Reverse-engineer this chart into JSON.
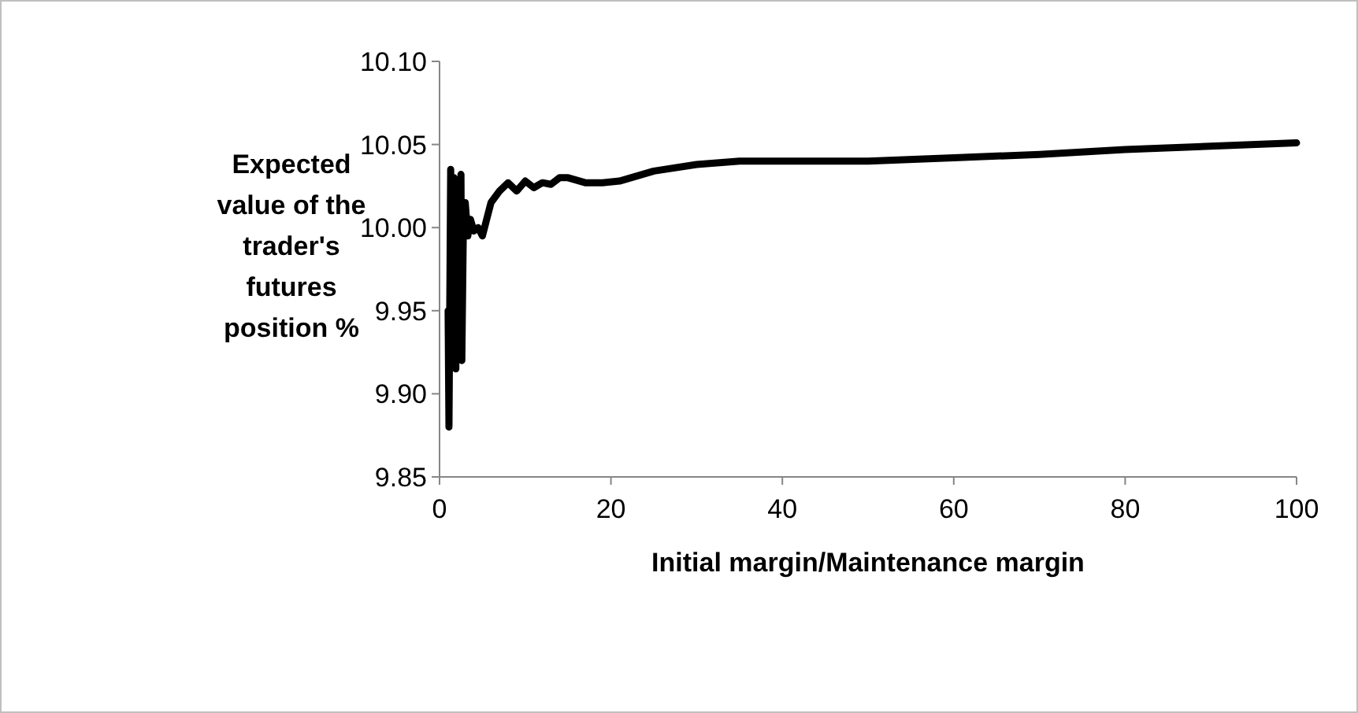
{
  "chart_data": {
    "type": "line",
    "xlabel": "Initial margin/Maintenance margin",
    "ylabel": "Expected value of the trader's futures position %",
    "x": [
      1,
      1.1,
      1.3,
      1.5,
      1.7,
      1.9,
      2.1,
      2.3,
      2.5,
      2.6,
      2.8,
      3,
      3.3,
      3.6,
      4,
      4.5,
      5,
      5.5,
      6,
      7,
      8,
      9,
      10,
      11,
      12,
      13,
      14,
      15,
      17,
      19,
      21,
      25,
      30,
      35,
      40,
      50,
      60,
      70,
      80,
      90,
      100
    ],
    "series": [
      {
        "color": "#000000",
        "values": [
          9.95,
          9.88,
          10.035,
          9.92,
          10.03,
          9.915,
          10.02,
          9.93,
          10.032,
          9.92,
          10.01,
          10.015,
          9.995,
          10.005,
          9.998,
          10.0,
          9.995,
          10.005,
          10.015,
          10.022,
          10.027,
          10.022,
          10.028,
          10.024,
          10.027,
          10.026,
          10.03,
          10.03,
          10.027,
          10.027,
          10.028,
          10.034,
          10.038,
          10.04,
          10.04,
          10.04,
          10.042,
          10.044,
          10.047,
          10.049,
          10.051
        ]
      }
    ],
    "xlim": [
      0,
      100
    ],
    "xticks": [
      0,
      20,
      40,
      60,
      80,
      100
    ],
    "ylim": [
      9.85,
      10.1
    ],
    "yticks": [
      {
        "value": 9.85,
        "label": "9.85"
      },
      {
        "value": 9.9,
        "label": "9.90"
      },
      {
        "value": 9.95,
        "label": "9.95"
      },
      {
        "value": 10,
        "label": "10.00"
      },
      {
        "value": 10.05,
        "label": "10.05"
      },
      {
        "value": 10.1,
        "label": "10.10"
      }
    ],
    "grid": false,
    "marker": "none",
    "line_style": "solid"
  }
}
